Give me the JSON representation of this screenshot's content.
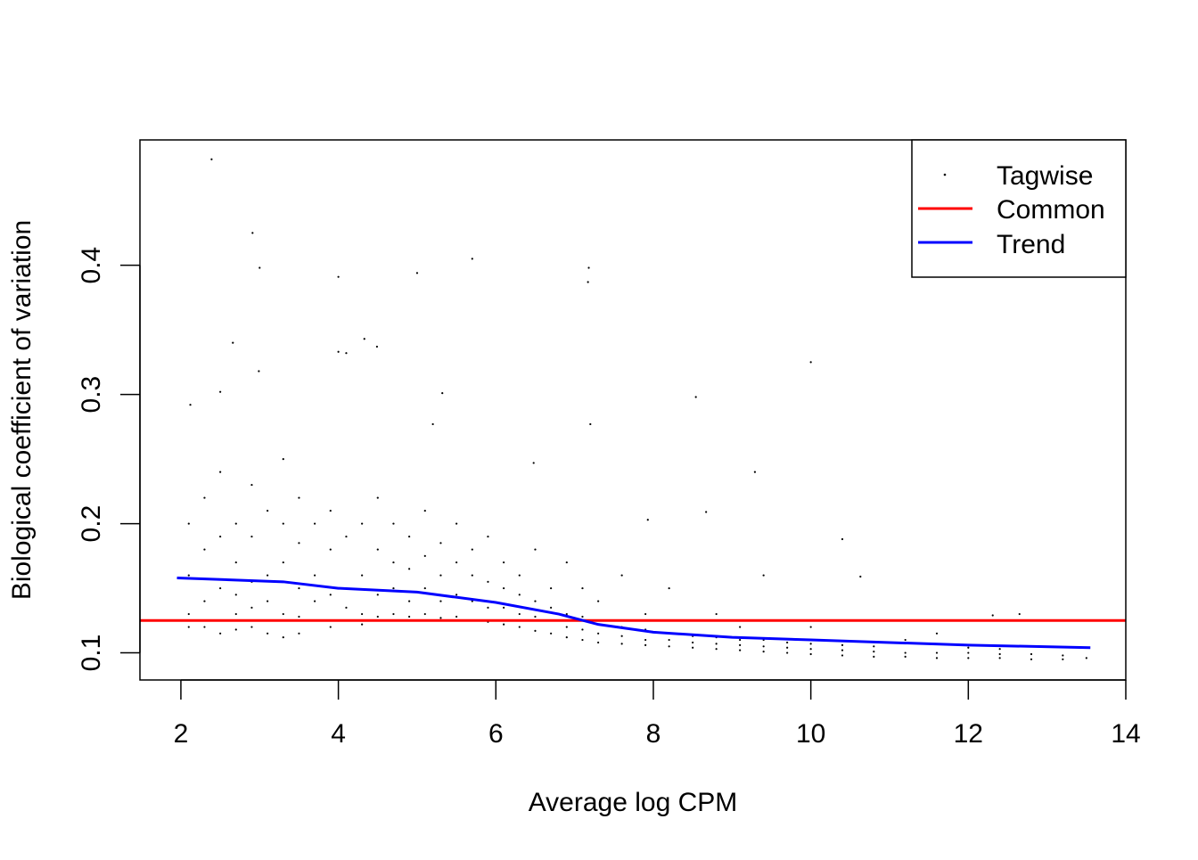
{
  "chart_data": {
    "type": "scatter",
    "title": "",
    "xlabel": "Average log CPM",
    "ylabel": "Biological coefficient of variation",
    "xlim": [
      1.48,
      14.0
    ],
    "ylim": [
      0.079,
      0.497
    ],
    "xticks": [
      2,
      4,
      6,
      8,
      10,
      12,
      14
    ],
    "yticks": [
      0.1,
      0.2,
      0.3,
      0.4
    ],
    "xtick_labels": [
      "2",
      "4",
      "6",
      "8",
      "10",
      "12",
      "14"
    ],
    "ytick_labels": [
      "0.1",
      "0.2",
      "0.3",
      "0.4"
    ],
    "grid": false,
    "legend_position": "top-right",
    "legend": [
      {
        "label": "Tagwise",
        "kind": "point",
        "color": "#000000"
      },
      {
        "label": "Common",
        "kind": "line",
        "color": "#ff0000"
      },
      {
        "label": "Trend",
        "kind": "line",
        "color": "#0000ff"
      }
    ],
    "common": 0.125,
    "trend": [
      [
        1.95,
        0.158
      ],
      [
        3.3,
        0.155
      ],
      [
        4.0,
        0.15
      ],
      [
        5.0,
        0.147
      ],
      [
        6.0,
        0.139
      ],
      [
        6.8,
        0.13
      ],
      [
        7.3,
        0.122
      ],
      [
        8.0,
        0.116
      ],
      [
        9.0,
        0.112
      ],
      [
        10.0,
        0.11
      ],
      [
        11.0,
        0.108
      ],
      [
        12.0,
        0.106
      ],
      [
        13.55,
        0.104
      ]
    ],
    "tagwise": [
      [
        2.39,
        0.482
      ],
      [
        2.91,
        0.425
      ],
      [
        3.0,
        0.398
      ],
      [
        4.0,
        0.391
      ],
      [
        5.0,
        0.394
      ],
      [
        5.7,
        0.405
      ],
      [
        7.18,
        0.398
      ],
      [
        7.17,
        0.387
      ],
      [
        10.0,
        0.325
      ],
      [
        4.33,
        0.343
      ],
      [
        4.49,
        0.337
      ],
      [
        4.0,
        0.333
      ],
      [
        4.1,
        0.332
      ],
      [
        2.66,
        0.34
      ],
      [
        2.99,
        0.318
      ],
      [
        2.5,
        0.302
      ],
      [
        2.12,
        0.292
      ],
      [
        5.32,
        0.301
      ],
      [
        8.54,
        0.298
      ],
      [
        7.2,
        0.277
      ],
      [
        5.2,
        0.277
      ],
      [
        9.29,
        0.24
      ],
      [
        6.48,
        0.247
      ],
      [
        10.4,
        0.188
      ],
      [
        10.63,
        0.159
      ],
      [
        7.93,
        0.203
      ],
      [
        8.67,
        0.209
      ],
      [
        12.65,
        0.13
      ],
      [
        12.31,
        0.129
      ],
      [
        2.1,
        0.13
      ],
      [
        2.1,
        0.16
      ],
      [
        2.1,
        0.2
      ],
      [
        2.1,
        0.12
      ],
      [
        2.3,
        0.14
      ],
      [
        2.3,
        0.18
      ],
      [
        2.3,
        0.12
      ],
      [
        2.3,
        0.22
      ],
      [
        2.5,
        0.125
      ],
      [
        2.5,
        0.15
      ],
      [
        2.5,
        0.19
      ],
      [
        2.5,
        0.115
      ],
      [
        2.5,
        0.24
      ],
      [
        2.7,
        0.13
      ],
      [
        2.7,
        0.17
      ],
      [
        2.7,
        0.2
      ],
      [
        2.7,
        0.118
      ],
      [
        2.7,
        0.145
      ],
      [
        2.9,
        0.12
      ],
      [
        2.9,
        0.155
      ],
      [
        2.9,
        0.19
      ],
      [
        2.9,
        0.23
      ],
      [
        2.9,
        0.135
      ],
      [
        3.1,
        0.125
      ],
      [
        3.1,
        0.16
      ],
      [
        3.1,
        0.21
      ],
      [
        3.1,
        0.115
      ],
      [
        3.1,
        0.14
      ],
      [
        3.3,
        0.13
      ],
      [
        3.3,
        0.17
      ],
      [
        3.3,
        0.2
      ],
      [
        3.3,
        0.112
      ],
      [
        3.3,
        0.25
      ],
      [
        3.5,
        0.128
      ],
      [
        3.5,
        0.15
      ],
      [
        3.5,
        0.185
      ],
      [
        3.5,
        0.115
      ],
      [
        3.5,
        0.22
      ],
      [
        3.7,
        0.125
      ],
      [
        3.7,
        0.16
      ],
      [
        3.7,
        0.2
      ],
      [
        3.7,
        0.14
      ],
      [
        3.9,
        0.12
      ],
      [
        3.9,
        0.145
      ],
      [
        3.9,
        0.18
      ],
      [
        3.9,
        0.21
      ],
      [
        4.1,
        0.125
      ],
      [
        4.1,
        0.15
      ],
      [
        4.1,
        0.19
      ],
      [
        4.1,
        0.135
      ],
      [
        4.3,
        0.13
      ],
      [
        4.3,
        0.16
      ],
      [
        4.3,
        0.2
      ],
      [
        4.3,
        0.122
      ],
      [
        4.5,
        0.128
      ],
      [
        4.5,
        0.145
      ],
      [
        4.5,
        0.18
      ],
      [
        4.5,
        0.22
      ],
      [
        4.7,
        0.13
      ],
      [
        4.7,
        0.15
      ],
      [
        4.7,
        0.17
      ],
      [
        4.7,
        0.2
      ],
      [
        4.9,
        0.128
      ],
      [
        4.9,
        0.14
      ],
      [
        4.9,
        0.165
      ],
      [
        4.9,
        0.19
      ],
      [
        5.1,
        0.13
      ],
      [
        5.1,
        0.15
      ],
      [
        5.1,
        0.175
      ],
      [
        5.1,
        0.21
      ],
      [
        5.3,
        0.127
      ],
      [
        5.3,
        0.14
      ],
      [
        5.3,
        0.16
      ],
      [
        5.3,
        0.185
      ],
      [
        5.5,
        0.128
      ],
      [
        5.5,
        0.145
      ],
      [
        5.5,
        0.17
      ],
      [
        5.5,
        0.2
      ],
      [
        5.7,
        0.125
      ],
      [
        5.7,
        0.14
      ],
      [
        5.7,
        0.16
      ],
      [
        5.7,
        0.18
      ],
      [
        5.9,
        0.124
      ],
      [
        5.9,
        0.135
      ],
      [
        5.9,
        0.155
      ],
      [
        5.9,
        0.19
      ],
      [
        6.1,
        0.122
      ],
      [
        6.1,
        0.135
      ],
      [
        6.1,
        0.15
      ],
      [
        6.1,
        0.17
      ],
      [
        6.3,
        0.12
      ],
      [
        6.3,
        0.13
      ],
      [
        6.3,
        0.145
      ],
      [
        6.3,
        0.16
      ],
      [
        6.5,
        0.117
      ],
      [
        6.5,
        0.128
      ],
      [
        6.5,
        0.14
      ],
      [
        6.5,
        0.18
      ],
      [
        6.7,
        0.115
      ],
      [
        6.7,
        0.125
      ],
      [
        6.7,
        0.135
      ],
      [
        6.7,
        0.15
      ],
      [
        6.9,
        0.112
      ],
      [
        6.9,
        0.12
      ],
      [
        6.9,
        0.13
      ],
      [
        6.9,
        0.17
      ],
      [
        7.1,
        0.11
      ],
      [
        7.1,
        0.118
      ],
      [
        7.1,
        0.128
      ],
      [
        7.1,
        0.15
      ],
      [
        7.3,
        0.108
      ],
      [
        7.3,
        0.115
      ],
      [
        7.3,
        0.125
      ],
      [
        7.3,
        0.14
      ],
      [
        7.6,
        0.107
      ],
      [
        7.6,
        0.113
      ],
      [
        7.6,
        0.12
      ],
      [
        7.6,
        0.16
      ],
      [
        7.9,
        0.106
      ],
      [
        7.9,
        0.11
      ],
      [
        7.9,
        0.118
      ],
      [
        7.9,
        0.13
      ],
      [
        8.2,
        0.105
      ],
      [
        8.2,
        0.11
      ],
      [
        8.2,
        0.115
      ],
      [
        8.2,
        0.15
      ],
      [
        8.5,
        0.104
      ],
      [
        8.5,
        0.108
      ],
      [
        8.5,
        0.113
      ],
      [
        8.5,
        0.125
      ],
      [
        8.8,
        0.103
      ],
      [
        8.8,
        0.107
      ],
      [
        8.8,
        0.112
      ],
      [
        8.8,
        0.13
      ],
      [
        9.1,
        0.102
      ],
      [
        9.1,
        0.106
      ],
      [
        9.1,
        0.11
      ],
      [
        9.1,
        0.12
      ],
      [
        9.4,
        0.101
      ],
      [
        9.4,
        0.105
      ],
      [
        9.4,
        0.11
      ],
      [
        9.4,
        0.16
      ],
      [
        9.7,
        0.1
      ],
      [
        9.7,
        0.104
      ],
      [
        9.7,
        0.108
      ],
      [
        10.0,
        0.099
      ],
      [
        10.0,
        0.103
      ],
      [
        10.0,
        0.107
      ],
      [
        10.0,
        0.12
      ],
      [
        10.4,
        0.098
      ],
      [
        10.4,
        0.102
      ],
      [
        10.4,
        0.106
      ],
      [
        10.8,
        0.097
      ],
      [
        10.8,
        0.101
      ],
      [
        10.8,
        0.105
      ],
      [
        11.2,
        0.097
      ],
      [
        11.2,
        0.1
      ],
      [
        11.2,
        0.11
      ],
      [
        11.6,
        0.096
      ],
      [
        11.6,
        0.1
      ],
      [
        11.6,
        0.115
      ],
      [
        12.0,
        0.096
      ],
      [
        12.0,
        0.1
      ],
      [
        12.0,
        0.104
      ],
      [
        12.4,
        0.096
      ],
      [
        12.4,
        0.099
      ],
      [
        12.4,
        0.103
      ],
      [
        12.8,
        0.095
      ],
      [
        12.8,
        0.099
      ],
      [
        13.2,
        0.095
      ],
      [
        13.2,
        0.098
      ],
      [
        13.5,
        0.096
      ]
    ]
  }
}
